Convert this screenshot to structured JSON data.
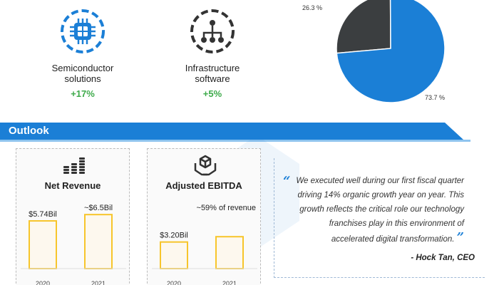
{
  "segments": [
    {
      "title": "Semiconductor solutions",
      "title_line1": "Semiconductor",
      "title_line2": "solutions",
      "growth": "+17%",
      "icon": "chip-icon"
    },
    {
      "title": "Infrastructure software",
      "title_line1": "Infrastructure",
      "title_line2": "software",
      "growth": "+5%",
      "icon": "network-tree-icon"
    }
  ],
  "outlook": {
    "title": "Outlook"
  },
  "chart_data": [
    {
      "type": "pie",
      "labels": [
        "26.3 %",
        "73.7 %"
      ],
      "values": [
        26.3,
        73.7
      ],
      "colors": [
        "#3b3e40",
        "#1b7fd6"
      ]
    },
    {
      "type": "bar",
      "title": "Net Revenue",
      "icon": "coin-stack-icon",
      "categories": [
        "2020",
        "2021"
      ],
      "values": [
        5.74,
        6.5
      ],
      "data_labels": [
        "$5.74Bil",
        "~$6.5Bil"
      ],
      "ylim": [
        0,
        7.2
      ],
      "bar_color": "#f7c52b"
    },
    {
      "type": "bar",
      "title": "Adjusted EBITDA",
      "icon": "box-hands-icon",
      "categories": [
        "2020",
        "2021"
      ],
      "values": [
        3.2,
        3.84
      ],
      "data_labels": [
        "$3.20Bil",
        ""
      ],
      "annotation": "~59% of revenue",
      "ylim": [
        0,
        7.2
      ],
      "bar_color": "#f7c52b"
    }
  ],
  "quote": {
    "line1": "We executed well during our first fiscal quarter",
    "line2": "driving 14% organic growth year on year. This",
    "line3": "growth reflects the critical role our technology",
    "line4": "franchises play in this environment of",
    "line5": "accelerated digital transformation.",
    "author": "- Hock Tan, CEO",
    "accent": "#1b7fd6"
  }
}
